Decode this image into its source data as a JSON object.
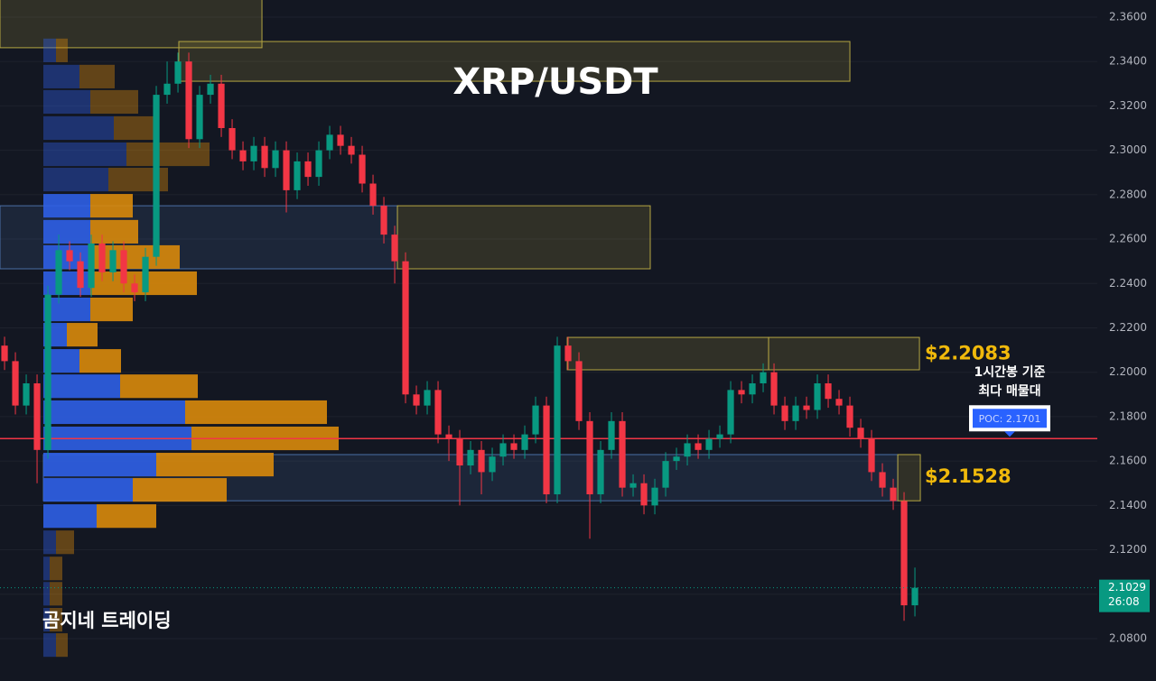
{
  "chart_data": {
    "type": "candlestick",
    "title": "XRP/USDT",
    "watermark": "곰지네 트레이딩",
    "xlim": [
      -0.42,
      100.83
    ],
    "ylim": [
      2.0609,
      2.3677
    ],
    "yticks": [
      {
        "value": 2.36,
        "label": "2.3600"
      },
      {
        "value": 2.34,
        "label": "2.3400"
      },
      {
        "value": 2.32,
        "label": "2.3200"
      },
      {
        "value": 2.3,
        "label": "2.3000"
      },
      {
        "value": 2.28,
        "label": "2.2800"
      },
      {
        "value": 2.26,
        "label": "2.2600"
      },
      {
        "value": 2.24,
        "label": "2.2400"
      },
      {
        "value": 2.22,
        "label": "2.2200"
      },
      {
        "value": 2.2,
        "label": "2.2000"
      },
      {
        "value": 2.18,
        "label": "2.1800"
      },
      {
        "value": 2.16,
        "label": "2.1600"
      },
      {
        "value": 2.14,
        "label": "2.1400"
      },
      {
        "value": 2.12,
        "label": "2.1200"
      },
      {
        "value": 2.1,
        "label": "2.1000"
      },
      {
        "value": 2.08,
        "label": "2.0800"
      }
    ],
    "grid": true,
    "up_color": "#089981",
    "down_color": "#f23645",
    "open": [
      2.212,
      2.205,
      2.185,
      2.195,
      2.165,
      2.235,
      2.255,
      2.25,
      2.238,
      2.258,
      2.245,
      2.255,
      2.24,
      2.236,
      2.252,
      2.325,
      2.33,
      2.34,
      2.305,
      2.325,
      2.33,
      2.31,
      2.3,
      2.295,
      2.302,
      2.292,
      2.3,
      2.282,
      2.295,
      2.288,
      2.3,
      2.307,
      2.302,
      2.298,
      2.285,
      2.275,
      2.262,
      2.25,
      2.19,
      2.185,
      2.192,
      2.172,
      2.17,
      2.158,
      2.165,
      2.155,
      2.162,
      2.168,
      2.165,
      2.172,
      2.185,
      2.145,
      2.212,
      2.205,
      2.178,
      2.145,
      2.165,
      2.178,
      2.148,
      2.15,
      2.14,
      2.148,
      2.16,
      2.162,
      2.168,
      2.165,
      2.17,
      2.172,
      2.192,
      2.19,
      2.195,
      2.2,
      2.185,
      2.178,
      2.185,
      2.183,
      2.195,
      2.188,
      2.185,
      2.175,
      2.17,
      2.155,
      2.148,
      2.142,
      2.095
    ],
    "high": [
      2.216,
      2.209,
      2.199,
      2.199,
      2.239,
      2.262,
      2.259,
      2.254,
      2.262,
      2.262,
      2.259,
      2.259,
      2.244,
      2.256,
      2.329,
      2.34,
      2.344,
      2.344,
      2.329,
      2.334,
      2.334,
      2.314,
      2.304,
      2.306,
      2.306,
      2.304,
      2.304,
      2.299,
      2.299,
      2.304,
      2.311,
      2.311,
      2.306,
      2.302,
      2.289,
      2.279,
      2.266,
      2.254,
      2.194,
      2.196,
      2.196,
      2.176,
      2.174,
      2.169,
      2.169,
      2.166,
      2.172,
      2.172,
      2.176,
      2.189,
      2.189,
      2.216,
      2.216,
      2.209,
      2.182,
      2.169,
      2.182,
      2.182,
      2.154,
      2.154,
      2.152,
      2.164,
      2.166,
      2.172,
      2.172,
      2.174,
      2.176,
      2.196,
      2.196,
      2.199,
      2.204,
      2.204,
      2.189,
      2.189,
      2.189,
      2.199,
      2.199,
      2.192,
      2.189,
      2.179,
      2.174,
      2.159,
      2.152,
      2.146,
      2.112
    ],
    "low": [
      2.201,
      2.181,
      2.181,
      2.15,
      2.161,
      2.231,
      2.246,
      2.234,
      2.234,
      2.241,
      2.241,
      2.236,
      2.232,
      2.232,
      2.248,
      2.321,
      2.326,
      2.301,
      2.301,
      2.321,
      2.306,
      2.296,
      2.291,
      2.291,
      2.288,
      2.288,
      2.272,
      2.278,
      2.284,
      2.284,
      2.296,
      2.298,
      2.294,
      2.281,
      2.271,
      2.258,
      2.24,
      2.186,
      2.181,
      2.181,
      2.168,
      2.16,
      2.14,
      2.154,
      2.145,
      2.151,
      2.158,
      2.161,
      2.161,
      2.168,
      2.141,
      2.141,
      2.201,
      2.174,
      2.125,
      2.141,
      2.161,
      2.144,
      2.144,
      2.136,
      2.136,
      2.144,
      2.156,
      2.158,
      2.161,
      2.161,
      2.166,
      2.168,
      2.186,
      2.186,
      2.191,
      2.181,
      2.174,
      2.174,
      2.179,
      2.179,
      2.184,
      2.181,
      2.171,
      2.166,
      2.151,
      2.144,
      2.138,
      2.088,
      2.09
    ],
    "close": [
      2.205,
      2.185,
      2.195,
      2.165,
      2.235,
      2.255,
      2.25,
      2.238,
      2.258,
      2.245,
      2.255,
      2.24,
      2.236,
      2.252,
      2.325,
      2.33,
      2.34,
      2.305,
      2.325,
      2.33,
      2.31,
      2.3,
      2.295,
      2.302,
      2.292,
      2.3,
      2.282,
      2.295,
      2.288,
      2.3,
      2.307,
      2.302,
      2.298,
      2.285,
      2.275,
      2.262,
      2.25,
      2.19,
      2.185,
      2.192,
      2.172,
      2.17,
      2.158,
      2.165,
      2.155,
      2.162,
      2.168,
      2.165,
      2.172,
      2.185,
      2.145,
      2.212,
      2.205,
      2.178,
      2.145,
      2.165,
      2.178,
      2.148,
      2.15,
      2.14,
      2.148,
      2.16,
      2.162,
      2.168,
      2.165,
      2.17,
      2.172,
      2.192,
      2.19,
      2.195,
      2.2,
      2.185,
      2.178,
      2.185,
      2.183,
      2.195,
      2.188,
      2.185,
      2.175,
      2.17,
      2.155,
      2.148,
      2.142,
      2.095,
      2.1029
    ],
    "countdown": "26:08",
    "poc": {
      "value": 2.1701,
      "label": "POC: 2.1701",
      "color": "#f23645"
    },
    "note": [
      "1시간봉 기준",
      "최다 매물대"
    ],
    "levels": [
      {
        "value": 2.2083,
        "label": "$2.2083"
      },
      {
        "value": 2.1528,
        "label": "$2.1528"
      }
    ],
    "zones": [
      {
        "x": [
          -0.42,
          23.75
        ],
        "y": [
          2.3462,
          2.37
        ],
        "color": "#b5a642"
      },
      {
        "x": [
          16.08,
          78.0
        ],
        "y": [
          2.3311,
          2.349
        ],
        "color": "#b5a642"
      },
      {
        "x": [
          -0.42,
          36.25
        ],
        "y": [
          2.2466,
          2.275
        ],
        "color": "#4a6fa5"
      },
      {
        "x": [
          36.25,
          59.58
        ],
        "y": [
          2.2466,
          2.275
        ],
        "color": "#b5a642"
      },
      {
        "x": [
          51.92,
          70.5
        ],
        "y": [
          2.2011,
          2.2157
        ],
        "color": "#b5a642"
      },
      {
        "x": [
          70.5,
          84.42
        ],
        "y": [
          2.2011,
          2.2157
        ],
        "color": "#b5a642"
      },
      {
        "x": [
          3.58,
          82.42
        ],
        "y": [
          2.1421,
          2.1629
        ],
        "color": "#4a6fa5"
      },
      {
        "x": [
          82.42,
          84.5
        ],
        "y": [
          2.1421,
          2.1629
        ],
        "color": "#b5a642"
      }
    ],
    "volume_profile": {
      "prices": [
        2.345,
        2.3332,
        2.3218,
        2.31,
        2.2982,
        2.2868,
        2.275,
        2.2633,
        2.2519,
        2.2401,
        2.2283,
        2.2169,
        2.2051,
        2.1937,
        2.182,
        2.1702,
        2.1584,
        2.147,
        2.1352,
        2.1234,
        2.1116,
        2.1002,
        2.0885,
        2.0771
      ],
      "buy": [
        14,
        40,
        52,
        78,
        92,
        72,
        52,
        52,
        52,
        52,
        52,
        26,
        40,
        85,
        157,
        164,
        125,
        99,
        59,
        14,
        7,
        7,
        7,
        14
      ],
      "sell": [
        13,
        39,
        53,
        47,
        92,
        66,
        47,
        53,
        99,
        118,
        47,
        34,
        46,
        86,
        157,
        163,
        130,
        104,
        66,
        20,
        14,
        14,
        14,
        13
      ],
      "value_area": [
        2.13,
        2.282
      ],
      "buy_color": "#2f5fe6",
      "sell_color": "#d98a0b"
    }
  }
}
